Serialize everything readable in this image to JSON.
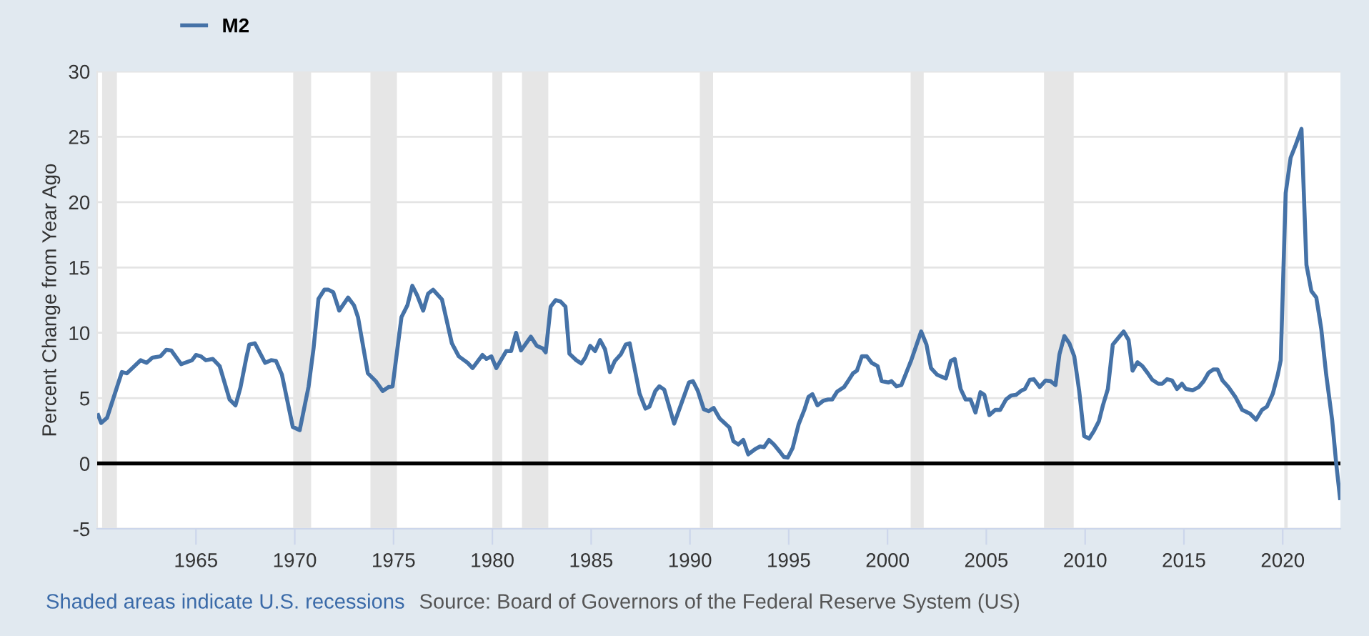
{
  "chart_data": {
    "type": "line",
    "ylabel": "Percent Change from Year Ago",
    "x": [
      1960.05,
      1960.2,
      1960.5,
      1961.25,
      1961.5,
      1962.2,
      1962.5,
      1962.8,
      1963.2,
      1963.5,
      1963.75,
      1964.25,
      1964.8,
      1965.0,
      1965.25,
      1965.5,
      1965.85,
      1966.2,
      1966.7,
      1967.0,
      1967.25,
      1967.55,
      1967.7,
      1967.98,
      1968.5,
      1968.8,
      1969.05,
      1969.35,
      1969.9,
      1970.25,
      1970.7,
      1970.95,
      1971.2,
      1971.5,
      1971.7,
      1971.95,
      1972.25,
      1972.7,
      1973.0,
      1973.2,
      1973.7,
      1974.1,
      1974.45,
      1974.75,
      1974.95,
      1975.4,
      1975.7,
      1975.95,
      1976.2,
      1976.5,
      1976.75,
      1977.0,
      1977.45,
      1977.95,
      1978.3,
      1978.75,
      1979.0,
      1979.5,
      1979.7,
      1979.95,
      1980.2,
      1980.7,
      1980.95,
      1981.2,
      1981.45,
      1981.95,
      1982.25,
      1982.55,
      1982.7,
      1982.95,
      1983.2,
      1983.45,
      1983.7,
      1983.9,
      1984.25,
      1984.5,
      1984.7,
      1984.95,
      1985.2,
      1985.45,
      1985.7,
      1985.95,
      1986.2,
      1986.5,
      1986.75,
      1986.95,
      1987.45,
      1987.75,
      1987.95,
      1988.25,
      1988.45,
      1988.7,
      1989.2,
      1989.95,
      1990.15,
      1990.4,
      1990.7,
      1990.95,
      1991.2,
      1991.5,
      1991.75,
      1992.0,
      1992.2,
      1992.45,
      1992.7,
      1992.95,
      1993.3,
      1993.55,
      1993.75,
      1994.0,
      1994.25,
      1994.55,
      1994.75,
      1994.95,
      1995.2,
      1995.5,
      1995.8,
      1996.0,
      1996.2,
      1996.45,
      1996.75,
      1997.0,
      1997.2,
      1997.45,
      1997.8,
      1998.0,
      1998.25,
      1998.45,
      1998.7,
      1998.95,
      1999.2,
      1999.5,
      1999.7,
      2000.05,
      2000.2,
      2000.45,
      2000.7,
      2001.2,
      2001.7,
      2001.97,
      2002.2,
      2002.5,
      2002.95,
      2003.2,
      2003.4,
      2003.7,
      2003.95,
      2004.2,
      2004.45,
      2004.7,
      2004.9,
      2005.15,
      2005.45,
      2005.7,
      2006.0,
      2006.25,
      2006.5,
      2006.75,
      2006.95,
      2007.2,
      2007.4,
      2007.7,
      2008.0,
      2008.25,
      2008.5,
      2008.7,
      2008.95,
      2009.2,
      2009.45,
      2009.7,
      2009.95,
      2010.2,
      2010.45,
      2010.7,
      2010.9,
      2011.15,
      2011.4,
      2011.7,
      2011.95,
      2012.2,
      2012.4,
      2012.65,
      2012.9,
      2013.15,
      2013.4,
      2013.7,
      2013.9,
      2014.15,
      2014.4,
      2014.65,
      2014.9,
      2015.1,
      2015.45,
      2015.75,
      2016.0,
      2016.25,
      2016.5,
      2016.7,
      2016.95,
      2017.25,
      2017.6,
      2017.95,
      2018.35,
      2018.65,
      2018.95,
      2019.2,
      2019.5,
      2019.75,
      2019.9,
      2020.15,
      2020.4,
      2020.65,
      2020.95,
      2021.2,
      2021.45,
      2021.7,
      2021.95,
      2022.2,
      2022.5,
      2022.7,
      2022.9
    ],
    "series": [
      {
        "name": "M2",
        "color": "#4572a7",
        "values": [
          3.7,
          3.1,
          3.5,
          7.0,
          6.9,
          7.9,
          7.7,
          8.1,
          8.2,
          8.7,
          8.65,
          7.6,
          7.9,
          8.3,
          8.2,
          7.9,
          8.0,
          7.45,
          4.9,
          4.45,
          5.8,
          8.1,
          9.1,
          9.2,
          7.7,
          7.9,
          7.85,
          6.8,
          2.8,
          2.55,
          5.9,
          8.8,
          12.6,
          13.3,
          13.3,
          13.1,
          11.7,
          12.7,
          12.1,
          11.2,
          6.9,
          6.3,
          5.55,
          5.85,
          5.9,
          11.2,
          12.1,
          13.6,
          12.85,
          11.7,
          13.0,
          13.3,
          12.55,
          9.2,
          8.2,
          7.7,
          7.3,
          8.3,
          8.0,
          8.2,
          7.3,
          8.6,
          8.6,
          10.0,
          8.65,
          9.7,
          9.0,
          8.8,
          8.5,
          12.0,
          12.5,
          12.4,
          12.0,
          8.4,
          7.9,
          7.65,
          8.1,
          9.0,
          8.6,
          9.45,
          8.75,
          7.0,
          7.85,
          8.35,
          9.1,
          9.2,
          5.35,
          4.2,
          4.35,
          5.55,
          5.9,
          5.65,
          3.05,
          6.2,
          6.3,
          5.55,
          4.15,
          4.0,
          4.25,
          3.45,
          3.1,
          2.75,
          1.7,
          1.45,
          1.8,
          0.7,
          1.1,
          1.3,
          1.25,
          1.8,
          1.45,
          0.9,
          0.5,
          0.45,
          1.2,
          3.0,
          4.15,
          5.1,
          5.3,
          4.45,
          4.8,
          4.9,
          4.9,
          5.5,
          5.85,
          6.3,
          6.9,
          7.1,
          8.2,
          8.2,
          7.7,
          7.45,
          6.3,
          6.2,
          6.3,
          5.9,
          6.0,
          7.9,
          10.1,
          9.1,
          7.3,
          6.8,
          6.5,
          7.85,
          8.0,
          5.7,
          4.9,
          4.9,
          3.9,
          5.45,
          5.25,
          3.7,
          4.1,
          4.1,
          4.9,
          5.2,
          5.25,
          5.55,
          5.7,
          6.4,
          6.45,
          5.85,
          6.35,
          6.3,
          6.0,
          8.35,
          9.75,
          9.2,
          8.2,
          5.55,
          2.1,
          1.9,
          2.5,
          3.25,
          4.45,
          5.7,
          9.1,
          9.65,
          10.1,
          9.45,
          7.1,
          7.75,
          7.45,
          6.95,
          6.4,
          6.1,
          6.1,
          6.45,
          6.35,
          5.7,
          6.1,
          5.7,
          5.6,
          5.85,
          6.3,
          6.95,
          7.2,
          7.2,
          6.35,
          5.85,
          5.1,
          4.1,
          3.8,
          3.35,
          4.1,
          4.35,
          5.35,
          6.8,
          7.9,
          20.7,
          23.4,
          24.35,
          25.6,
          15.2,
          13.2,
          12.7,
          10.3,
          6.8,
          3.35,
          0.1,
          -2.65
        ]
      }
    ],
    "xlim": [
      1960.0,
      2022.92
    ],
    "xticks": [
      1965,
      1970,
      1975,
      1980,
      1985,
      1990,
      1995,
      2000,
      2005,
      2010,
      2015,
      2020
    ],
    "ylim": [
      -5,
      30
    ],
    "yticks": [
      -5,
      0,
      5,
      10,
      15,
      20,
      25,
      30
    ],
    "grid": "y",
    "legend": "top left",
    "marker": "none",
    "line_style": "solid",
    "ref_lines": [
      {
        "axis": "y",
        "value": 0,
        "color": "#000000",
        "line_style": "solid"
      }
    ],
    "bands": [
      {
        "axis": "x",
        "from": 1960.25,
        "to": 1961.0,
        "color": "#e6e6e6"
      },
      {
        "axis": "x",
        "from": 1969.92,
        "to": 1970.83,
        "color": "#e6e6e6"
      },
      {
        "axis": "x",
        "from": 1973.83,
        "to": 1975.17,
        "color": "#e6e6e6"
      },
      {
        "axis": "x",
        "from": 1980.0,
        "to": 1980.5,
        "color": "#e6e6e6"
      },
      {
        "axis": "x",
        "from": 1981.5,
        "to": 1982.83,
        "color": "#e6e6e6"
      },
      {
        "axis": "x",
        "from": 1990.5,
        "to": 1991.17,
        "color": "#e6e6e6"
      },
      {
        "axis": "x",
        "from": 2001.17,
        "to": 2001.83,
        "color": "#e6e6e6"
      },
      {
        "axis": "x",
        "from": 2007.92,
        "to": 2009.42,
        "color": "#e6e6e6"
      },
      {
        "axis": "x",
        "from": 2020.08,
        "to": 2020.25,
        "color": "#e6e6e6"
      }
    ],
    "annotations": [
      "Shaded areas indicate U.S. recessions",
      "Source: Board of Governors of the Federal Reserve System (US)"
    ]
  }
}
